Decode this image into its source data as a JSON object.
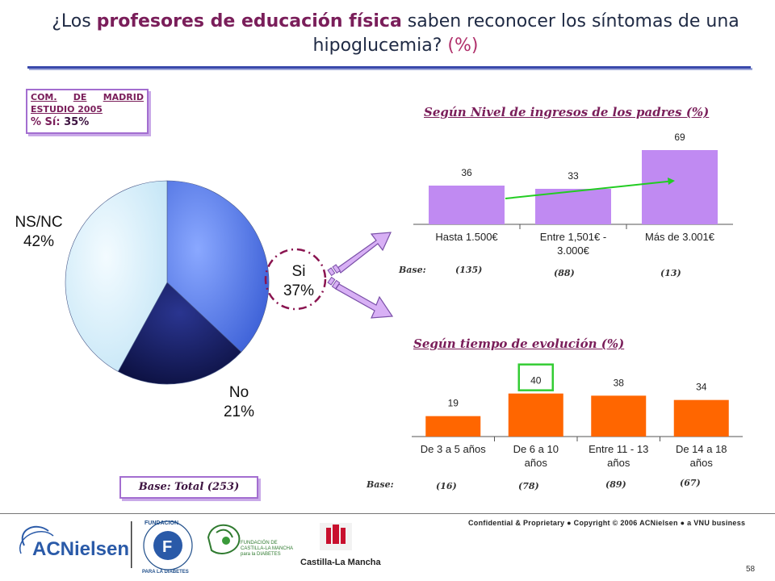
{
  "title": {
    "part1": "¿Los ",
    "bold": "profesores de educación física",
    "part2": " saben reconocer los síntomas de una hipoglucemia? ",
    "pct": "(%)"
  },
  "madrid_box": {
    "line1a": "COM.",
    "line1b": "DE",
    "line1c": "MADRID",
    "line2": "ESTUDIO 2005",
    "line3_label": "% Sí:",
    "line3_value": "35%"
  },
  "base_total": "Base: Total (253)",
  "base_label": "Base:",
  "colors": {
    "pie_si": "#5a7fe8",
    "pie_no": "#141a5c",
    "pie_nsnc": "#d8f0fb",
    "bar_income": "#c08af2",
    "bar_evolution": "#ff6600",
    "trend_line": "#22cc22",
    "highlight_box": "#33cc33",
    "arrow_fill": "#d8b0f5",
    "dashed_circle": "#8a1450"
  },
  "chart_data": [
    {
      "type": "pie",
      "labels": [
        "Si",
        "No",
        "NS/NC"
      ],
      "values": [
        37,
        21,
        42
      ],
      "value_labels": [
        "37%",
        "21%",
        "42%"
      ]
    },
    {
      "type": "bar",
      "title": "Según Nivel de ingresos de los padres (%)",
      "categories": [
        "Hasta 1.500€",
        "Entre 1,501€ - 3.000€",
        "Más de 3.001€"
      ],
      "category_lines": [
        [
          "Hasta 1.500€"
        ],
        [
          "Entre 1,501€ -",
          "3.000€"
        ],
        [
          "Más de 3.001€"
        ]
      ],
      "values": [
        36,
        33,
        69
      ],
      "bases": [
        "(135)",
        "(88)",
        "(13)"
      ],
      "ylim": [
        0,
        75
      ],
      "grid": false,
      "trend_line": true
    },
    {
      "type": "bar",
      "title": "Según tiempo de evolución  (%)",
      "categories": [
        "De 3 a 5 años",
        "De 6 a 10 años",
        "Entre 11 - 13 años",
        "De 14 a 18 años"
      ],
      "category_lines": [
        [
          "De 3 a 5 años"
        ],
        [
          "De 6 a 10",
          "años"
        ],
        [
          "Entre 11 - 13",
          "años"
        ],
        [
          "De 14 a 18",
          "años"
        ]
      ],
      "values": [
        19,
        40,
        38,
        34
      ],
      "bases": [
        "(16)",
        "(78)",
        "(89)",
        "(67)"
      ],
      "ylim": [
        0,
        45
      ],
      "grid": false,
      "highlight_index": 1
    }
  ],
  "footer": {
    "confidential": "Confidential & Proprietary ● Copyright © 2006 ACNielsen ● a VNU business",
    "page_number": "58",
    "logo_acnielsen": "ACNielsen",
    "logo_fundacion_diabetes": "FUNDACION PARA LA DIABETES",
    "logo_fundacion_clm": "FUNDACIÓN DE CASTILLA-LA MANCHA para la DIABETES",
    "logo_clm": "Castilla-La Mancha"
  }
}
